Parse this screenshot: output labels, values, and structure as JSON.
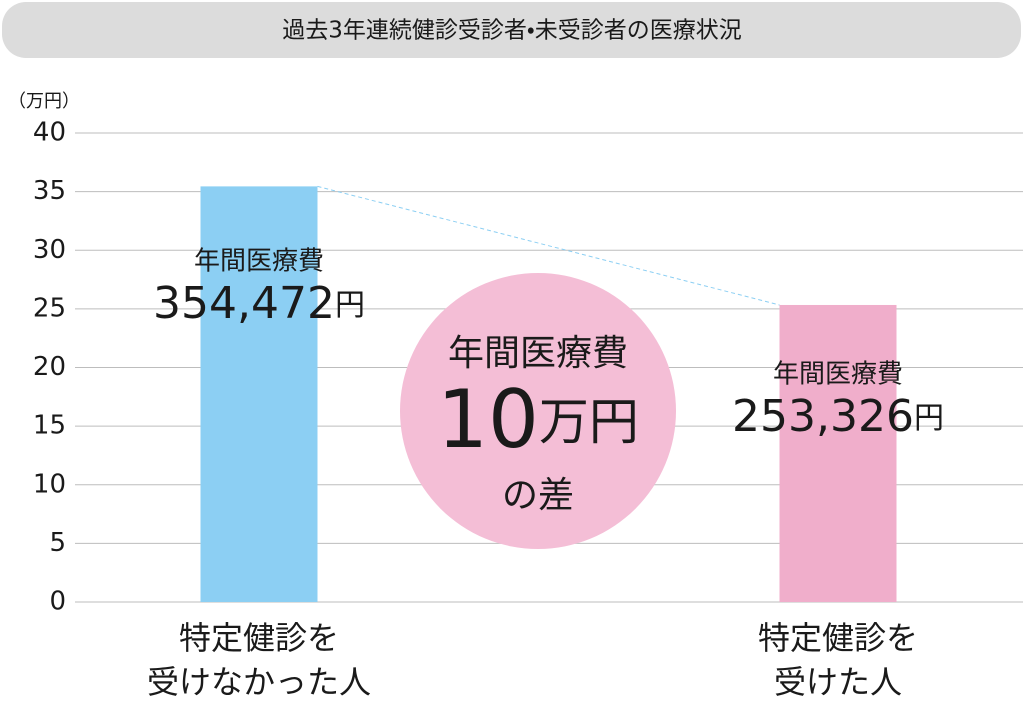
{
  "chart_data": {
    "type": "bar",
    "title": "過去3年連続健診受診者・未受診者の医療状況",
    "y_unit": "（万円）",
    "categories": [
      "特定健診を\n受けなかった人",
      "特定健診を\n受けた人"
    ],
    "values": [
      35.4472,
      25.3326
    ],
    "value_labels": [
      "354,472円",
      "253,326円"
    ],
    "value_label_title": "年間医療費",
    "colors": [
      "#8ccff3",
      "#f0aecb"
    ],
    "connector_color": "#8ccff3",
    "annotation": {
      "lines": [
        "年間医療費",
        "10万円",
        "の差"
      ],
      "color": "#f4bed6"
    },
    "ylim": [
      0,
      40
    ],
    "yticks": [
      0,
      5,
      10,
      15,
      20,
      25,
      30,
      35,
      40
    ],
    "grid": true
  }
}
